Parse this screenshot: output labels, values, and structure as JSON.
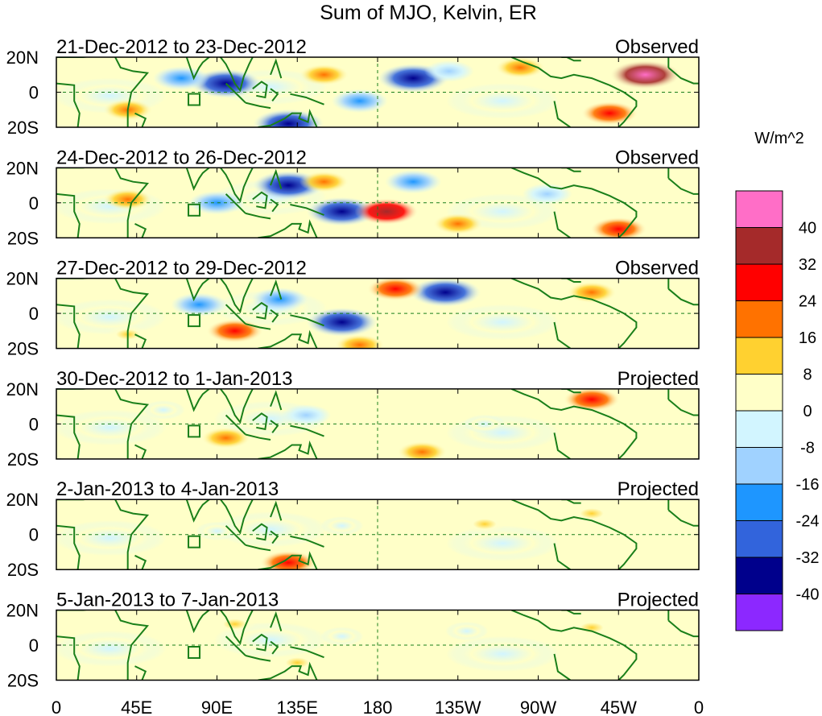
{
  "chart_data": {
    "type": "heatmap",
    "title": "Sum of MJO, Kelvin, ER",
    "units": "W/m^2",
    "x_ticks": [
      "0",
      "45E",
      "90E",
      "135E",
      "180",
      "135W",
      "90W",
      "45W",
      "0"
    ],
    "x_tick_degrees": [
      0,
      45,
      90,
      135,
      180,
      225,
      270,
      315,
      360
    ],
    "y_ticks": [
      "20N",
      "0",
      "20S"
    ],
    "y_tick_values": [
      20,
      0,
      -20
    ],
    "xlim": [
      0,
      360
    ],
    "ylim": [
      -20,
      20
    ],
    "colorbar": {
      "labels": [
        "40",
        "32",
        "24",
        "16",
        "8",
        "0",
        "-8",
        "-16",
        "-24",
        "-32",
        "-40"
      ],
      "levels": [
        40,
        32,
        24,
        16,
        8,
        0,
        -8,
        -16,
        -24,
        -32,
        -40
      ],
      "colors": [
        "#ff6ec7",
        "#a52a2a",
        "#ff0000",
        "#ff7200",
        "#ffd130",
        "#ffffc8",
        "#d2f5ff",
        "#a0d2ff",
        "#1e96ff",
        "#3264dc",
        "#00008c",
        "#8c28ff"
      ]
    },
    "panels": [
      {
        "period": "21-Dec-2012 to 23-Dec-2012",
        "status": "Observed",
        "features": [
          {
            "lon": 95,
            "lat": 5,
            "value": -40
          },
          {
            "lon": 70,
            "lat": 8,
            "value": -24
          },
          {
            "lon": 130,
            "lat": -18,
            "value": -40
          },
          {
            "lon": 200,
            "lat": 8,
            "value": -40
          },
          {
            "lon": 170,
            "lat": -5,
            "value": -24
          },
          {
            "lon": 220,
            "lat": 12,
            "value": -16
          },
          {
            "lon": 330,
            "lat": 10,
            "value": 40
          },
          {
            "lon": 310,
            "lat": -12,
            "value": 24
          },
          {
            "lon": 150,
            "lat": 10,
            "value": 16
          },
          {
            "lon": 260,
            "lat": 14,
            "value": 16
          },
          {
            "lon": 40,
            "lat": -10,
            "value": 16
          }
        ]
      },
      {
        "period": "24-Dec-2012 to 26-Dec-2012",
        "status": "Observed",
        "features": [
          {
            "lon": 130,
            "lat": 10,
            "value": -40
          },
          {
            "lon": 160,
            "lat": -5,
            "value": -40
          },
          {
            "lon": 90,
            "lat": 0,
            "value": -24
          },
          {
            "lon": 200,
            "lat": 12,
            "value": -24
          },
          {
            "lon": 275,
            "lat": 5,
            "value": -16
          },
          {
            "lon": 185,
            "lat": -5,
            "value": 32
          },
          {
            "lon": 315,
            "lat": -15,
            "value": 24
          },
          {
            "lon": 150,
            "lat": 12,
            "value": 16
          },
          {
            "lon": 225,
            "lat": -12,
            "value": 16
          },
          {
            "lon": 40,
            "lat": 2,
            "value": 16
          }
        ]
      },
      {
        "period": "27-Dec-2012 to 29-Dec-2012",
        "status": "Observed",
        "features": [
          {
            "lon": 160,
            "lat": -5,
            "value": -40
          },
          {
            "lon": 218,
            "lat": 12,
            "value": -40
          },
          {
            "lon": 80,
            "lat": 5,
            "value": -24
          },
          {
            "lon": 125,
            "lat": 8,
            "value": -24
          },
          {
            "lon": 190,
            "lat": 14,
            "value": 24
          },
          {
            "lon": 100,
            "lat": -10,
            "value": 24
          },
          {
            "lon": 300,
            "lat": 12,
            "value": 16
          },
          {
            "lon": 170,
            "lat": -18,
            "value": 16
          },
          {
            "lon": 40,
            "lat": -12,
            "value": 8
          }
        ]
      },
      {
        "period": "30-Dec-2012 to 1-Jan-2013",
        "status": "Projected",
        "features": [
          {
            "lon": 300,
            "lat": 14,
            "value": 24
          },
          {
            "lon": 205,
            "lat": -16,
            "value": 16
          },
          {
            "lon": 95,
            "lat": -8,
            "value": 16
          },
          {
            "lon": 140,
            "lat": 5,
            "value": -16
          },
          {
            "lon": 60,
            "lat": 8,
            "value": -8
          },
          {
            "lon": 240,
            "lat": 0,
            "value": -8
          }
        ]
      },
      {
        "period": "2-Jan-2013 to 4-Jan-2013",
        "status": "Projected",
        "features": [
          {
            "lon": 130,
            "lat": -16,
            "value": 24
          },
          {
            "lon": 300,
            "lat": 12,
            "value": 8
          },
          {
            "lon": 160,
            "lat": 5,
            "value": -8
          },
          {
            "lon": 90,
            "lat": 2,
            "value": -8
          },
          {
            "lon": 240,
            "lat": 6,
            "value": 8
          }
        ]
      },
      {
        "period": "5-Jan-2013 to 7-Jan-2013",
        "status": "Projected",
        "features": [
          {
            "lon": 100,
            "lat": 12,
            "value": 8
          },
          {
            "lon": 135,
            "lat": -10,
            "value": 8
          },
          {
            "lon": 160,
            "lat": 5,
            "value": -8
          },
          {
            "lon": 230,
            "lat": 8,
            "value": -8
          },
          {
            "lon": 300,
            "lat": 10,
            "value": 8
          }
        ]
      }
    ]
  }
}
